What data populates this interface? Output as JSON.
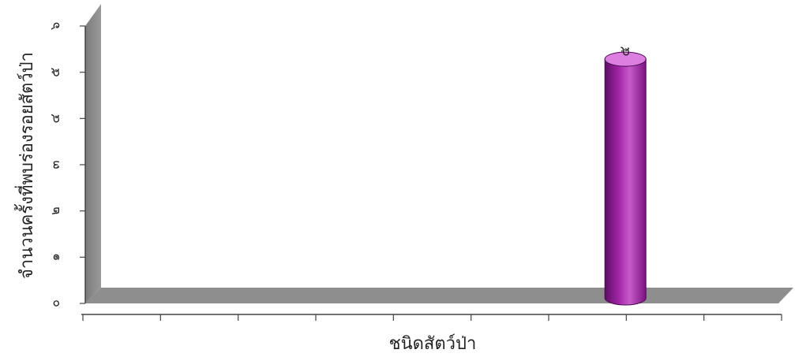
{
  "chart_data": {
    "type": "bar",
    "style": "3d-cylinder",
    "xlabel": "ชนิดสัตว์ป่า",
    "ylabel": "จำนวนครั้งที่พบร่องรอยสัตว์ป่า",
    "ylim": [
      0,
      6
    ],
    "yticks": [
      "๐",
      "๑",
      "๒",
      "๓",
      "๔",
      "๕",
      "๖"
    ],
    "category_count": 9,
    "series": [
      {
        "values": [
          0,
          0,
          0,
          0,
          0,
          0,
          5.3,
          0,
          0
        ],
        "data_labels": [
          "",
          "",
          "",
          "",
          "",
          "",
          "๕",
          "",
          ""
        ],
        "color": "#9b1fa0"
      }
    ],
    "grid": false,
    "legend": "none",
    "wall_color": "#8c8c8c"
  }
}
